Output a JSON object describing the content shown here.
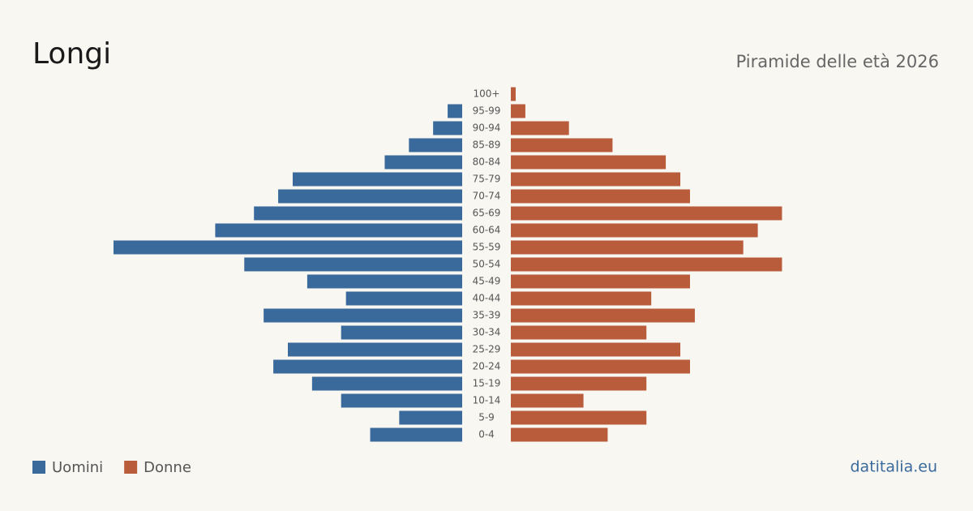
{
  "chart_data": {
    "type": "pyramid",
    "title": "Longi",
    "subtitle": "Piramide delle età 2026",
    "source": "datitalia.eu",
    "categories": [
      "100+",
      "95-99",
      "90-94",
      "85-89",
      "80-84",
      "75-79",
      "70-74",
      "65-69",
      "60-64",
      "55-59",
      "50-54",
      "45-49",
      "40-44",
      "35-39",
      "30-34",
      "25-29",
      "20-24",
      "15-19",
      "10-14",
      "5-9",
      "0-4"
    ],
    "series": [
      {
        "name": "Uomini",
        "color": "#3a6a9c",
        "values": [
          0,
          3,
          6,
          11,
          16,
          35,
          38,
          43,
          51,
          72,
          45,
          32,
          24,
          41,
          25,
          36,
          39,
          31,
          25,
          13,
          19
        ]
      },
      {
        "name": "Donne",
        "color": "#b85c3c",
        "values": [
          1,
          3,
          12,
          21,
          32,
          35,
          37,
          56,
          51,
          48,
          56,
          37,
          29,
          38,
          28,
          35,
          37,
          28,
          15,
          28,
          20
        ]
      }
    ]
  }
}
